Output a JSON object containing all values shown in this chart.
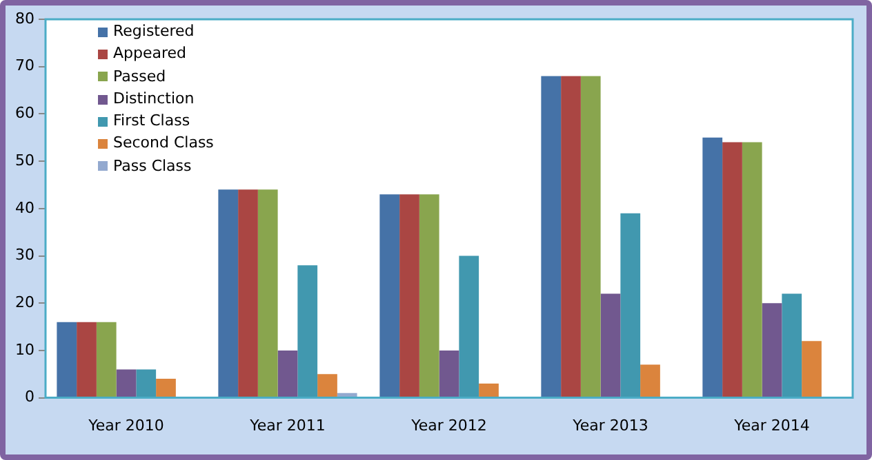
{
  "chart_data": {
    "type": "bar",
    "categories": [
      "Year 2010",
      "Year 2011",
      "Year 2012",
      "Year 2013",
      "Year 2014"
    ],
    "series": [
      {
        "name": "Registered",
        "color": "#4572a7",
        "values": [
          16,
          44,
          43,
          68,
          55
        ]
      },
      {
        "name": "Appeared",
        "color": "#aa4643",
        "values": [
          16,
          44,
          43,
          68,
          54
        ]
      },
      {
        "name": "Passed",
        "color": "#89a54e",
        "values": [
          16,
          44,
          43,
          68,
          54
        ]
      },
      {
        "name": "Distinction",
        "color": "#71588f",
        "values": [
          6,
          10,
          10,
          22,
          20
        ]
      },
      {
        "name": "First Class",
        "color": "#4198af",
        "values": [
          6,
          28,
          30,
          39,
          22
        ]
      },
      {
        "name": "Second Class",
        "color": "#db843d",
        "values": [
          4,
          5,
          3,
          7,
          12
        ]
      },
      {
        "name": "Pass Class",
        "color": "#93a9cf",
        "values": [
          0,
          1,
          0,
          0,
          0
        ]
      }
    ],
    "ylim": [
      0,
      80
    ],
    "yticks": [
      0,
      10,
      20,
      30,
      40,
      50,
      60,
      70,
      80
    ],
    "grid": false,
    "legend": "top left"
  }
}
